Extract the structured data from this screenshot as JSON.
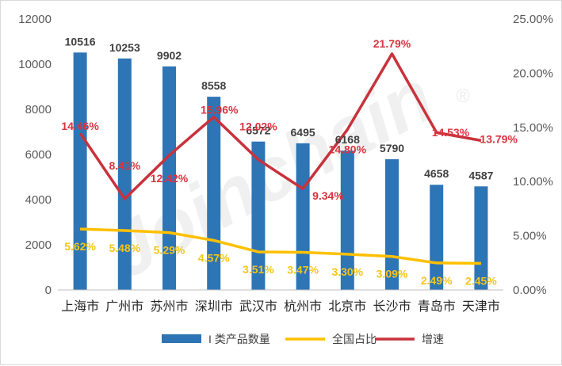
{
  "chart_data": {
    "type": "bar",
    "categories": [
      "上海市",
      "广州市",
      "苏州市",
      "深圳市",
      "武汉市",
      "杭州市",
      "北京市",
      "长沙市",
      "青岛市",
      "天津市"
    ],
    "series": [
      {
        "name": "I 类产品数量",
        "type": "bar",
        "axis": "left",
        "color": "#2e75b6",
        "values": [
          10516,
          10253,
          9902,
          8558,
          6572,
          6495,
          6168,
          5790,
          4658,
          4587
        ],
        "labels": [
          "10516",
          "10253",
          "9902",
          "8558",
          "6572",
          "6495",
          "6168",
          "5790",
          "4658",
          "4587"
        ]
      },
      {
        "name": "全国占比",
        "type": "line",
        "axis": "right",
        "color": "#ffc000",
        "values": [
          5.62,
          5.48,
          5.29,
          4.57,
          3.51,
          3.47,
          3.3,
          3.09,
          2.49,
          2.45
        ],
        "labels": [
          "5.62%",
          "5.48%",
          "5.29%",
          "4.57%",
          "3.51%",
          "3.47%",
          "3.30%",
          "3.09%",
          "2.49%",
          "2.45%"
        ]
      },
      {
        "name": "增速",
        "type": "line",
        "axis": "right",
        "color": "#c8323c",
        "values": [
          14.46,
          8.41,
          12.42,
          15.96,
          12.02,
          9.34,
          14.8,
          21.79,
          14.53,
          13.79
        ],
        "labels": [
          "14.46%",
          "8.41%",
          "12.42%",
          "15.96%",
          "12.02%",
          "9.34%",
          "14.80%",
          "21.79%",
          "14.53%",
          "13.79%"
        ]
      }
    ],
    "y_left": {
      "min": 0,
      "max": 12000,
      "step": 2000,
      "ticks": [
        "0",
        "2000",
        "4000",
        "6000",
        "8000",
        "10000",
        "12000"
      ]
    },
    "y_right": {
      "min": 0,
      "max": 25,
      "step": 5,
      "unit": "%",
      "ticks": [
        "0.00%",
        "5.00%",
        "10.00%",
        "15.00%",
        "20.00%",
        "25.00%"
      ]
    },
    "legend_position": "bottom",
    "grid": false,
    "watermark": "Joinchain",
    "watermark_mark": "®"
  }
}
